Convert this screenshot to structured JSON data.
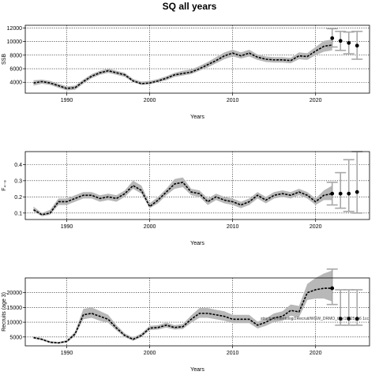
{
  "chart_data": {
    "title": "SQ all years",
    "panels": [
      {
        "type": "line",
        "ylabel": "SSB",
        "xlabel": "Years",
        "xlim": [
          1985,
          2026.5
        ],
        "ylim": [
          2400,
          12400
        ],
        "xticks": [
          1990,
          2000,
          2010,
          2020
        ],
        "yticks": [
          4000,
          6000,
          8000,
          10000,
          12000
        ],
        "grid": true,
        "series": [
          {
            "x": [
              1986,
              1987,
              1988,
              1989,
              1990,
              1991,
              1992,
              1993,
              1994,
              1995,
              1996,
              1997,
              1998,
              1999,
              2000,
              2001,
              2002,
              2003,
              2004,
              2005,
              2006,
              2007,
              2008,
              2009,
              2010,
              2011,
              2012,
              2013,
              2014,
              2015,
              2016,
              2017,
              2018,
              2019,
              2020,
              2021,
              2022
            ],
            "values": [
              3900,
              4100,
              3900,
              3500,
              3100,
              3200,
              4100,
              4900,
              5400,
              5700,
              5400,
              5100,
              4200,
              3800,
              3900,
              4200,
              4600,
              5100,
              5300,
              5500,
              6000,
              6600,
              7200,
              7900,
              8300,
              7900,
              8300,
              7700,
              7400,
              7300,
              7300,
              7200,
              7900,
              7800,
              8600,
              9300,
              9500
            ],
            "lower": [
              3500,
              3800,
              3600,
              3200,
              2800,
              2900,
              3800,
              4600,
              5100,
              5400,
              5100,
              4800,
              4000,
              3600,
              3700,
              4000,
              4300,
              4800,
              5000,
              5200,
              5700,
              6200,
              6800,
              7400,
              7800,
              7500,
              7800,
              7300,
              7000,
              6900,
              6900,
              6800,
              7400,
              7300,
              8000,
              8500,
              8700
            ],
            "upper": [
              4300,
              4400,
              4200,
              3800,
              3400,
              3500,
              4400,
              5200,
              5700,
              6000,
              5700,
              5400,
              4500,
              4100,
              4200,
              4500,
              4900,
              5400,
              5700,
              5900,
              6400,
              7000,
              7700,
              8400,
              8800,
              8400,
              8800,
              8100,
              7800,
              7700,
              7700,
              7600,
              8400,
              8300,
              9200,
              10100,
              10300
            ]
          }
        ],
        "projection": {
          "x": [
            2022,
            2023,
            2024,
            2025
          ],
          "values": [
            10500,
            10100,
            9800,
            9400
          ],
          "lower": [
            9200,
            8700,
            8200,
            7400
          ],
          "upper": [
            11900,
            11500,
            11400,
            11500
          ]
        }
      },
      {
        "type": "line",
        "ylabel": "F₄₋₈",
        "xlabel": "Years",
        "xlim": [
          1985,
          2026.5
        ],
        "ylim": [
          0.06,
          0.48
        ],
        "xticks": [
          1990,
          2000,
          2010,
          2020
        ],
        "yticks": [
          0.1,
          0.2,
          0.3,
          0.4
        ],
        "grid": true,
        "series": [
          {
            "x": [
              1986,
              1987,
              1988,
              1989,
              1990,
              1991,
              1992,
              1993,
              1994,
              1995,
              1996,
              1997,
              1998,
              1999,
              2000,
              2001,
              2002,
              2003,
              2004,
              2005,
              2006,
              2007,
              2008,
              2009,
              2010,
              2011,
              2012,
              2013,
              2014,
              2015,
              2016,
              2017,
              2018,
              2019,
              2020,
              2021,
              2022
            ],
            "values": [
              0.12,
              0.09,
              0.1,
              0.17,
              0.17,
              0.19,
              0.21,
              0.21,
              0.19,
              0.2,
              0.19,
              0.22,
              0.27,
              0.24,
              0.14,
              0.18,
              0.23,
              0.28,
              0.29,
              0.23,
              0.22,
              0.17,
              0.2,
              0.18,
              0.17,
              0.15,
              0.17,
              0.21,
              0.18,
              0.21,
              0.22,
              0.21,
              0.23,
              0.21,
              0.17,
              0.21,
              0.22
            ],
            "lower": [
              0.11,
              0.08,
              0.09,
              0.15,
              0.15,
              0.17,
              0.19,
              0.19,
              0.17,
              0.18,
              0.17,
              0.2,
              0.25,
              0.22,
              0.13,
              0.16,
              0.21,
              0.25,
              0.26,
              0.21,
              0.2,
              0.15,
              0.18,
              0.16,
              0.15,
              0.13,
              0.15,
              0.19,
              0.16,
              0.19,
              0.2,
              0.19,
              0.21,
              0.19,
              0.15,
              0.18,
              0.18
            ],
            "upper": [
              0.14,
              0.1,
              0.12,
              0.19,
              0.19,
              0.21,
              0.23,
              0.23,
              0.21,
              0.22,
              0.21,
              0.24,
              0.3,
              0.27,
              0.16,
              0.2,
              0.25,
              0.31,
              0.32,
              0.25,
              0.24,
              0.19,
              0.22,
              0.2,
              0.19,
              0.17,
              0.19,
              0.23,
              0.2,
              0.23,
              0.24,
              0.23,
              0.25,
              0.23,
              0.19,
              0.24,
              0.27
            ]
          }
        ],
        "projection": {
          "x": [
            2022,
            2023,
            2024,
            2025
          ],
          "values": [
            0.22,
            0.22,
            0.22,
            0.23
          ],
          "lower": [
            0.15,
            0.13,
            0.11,
            0.1
          ],
          "upper": [
            0.29,
            0.35,
            0.43,
            0.48
          ]
        }
      },
      {
        "type": "line",
        "ylabel": "Recruits (age 3)",
        "xlabel": "Years",
        "xlim": [
          1985,
          2026.5
        ],
        "ylim": [
          2000,
          25000
        ],
        "xticks": [
          1990,
          2000,
          2010,
          2020
        ],
        "yticks": [
          5000,
          10000,
          15000,
          20000
        ],
        "grid": true,
        "annotation": "structure/mentolog/2Recruit/WGW_DRMO_t2_r19325_g6 1cc",
        "series": [
          {
            "x": [
              1986,
              1987,
              1988,
              1989,
              1990,
              1991,
              1992,
              1993,
              1994,
              1995,
              1996,
              1997,
              1998,
              1999,
              2000,
              2001,
              2002,
              2003,
              2004,
              2005,
              2006,
              2007,
              2008,
              2009,
              2010,
              2011,
              2012,
              2013,
              2014,
              2015,
              2016,
              2017,
              2018,
              2019,
              2020,
              2021,
              2022
            ],
            "values": [
              4800,
              4200,
              3200,
              3000,
              3500,
              6000,
              12500,
              13000,
              12000,
              11000,
              8000,
              5500,
              4200,
              5500,
              8000,
              8200,
              9000,
              8200,
              8500,
              11000,
              13000,
              13000,
              12500,
              12000,
              11000,
              11000,
              11000,
              9000,
              10000,
              11500,
              12000,
              14000,
              13500,
              20000,
              21000,
              21500,
              21500
            ],
            "lower": [
              4400,
              3900,
              2900,
              2700,
              3100,
              5300,
              11000,
              11500,
              10500,
              9800,
              7200,
              4900,
              3700,
              4900,
              7300,
              7500,
              8200,
              7500,
              7700,
              9800,
              11500,
              11500,
              11000,
              10500,
              9700,
              9700,
              9700,
              7900,
              8800,
              10100,
              10500,
              12200,
              11700,
              17500,
              18000,
              18000,
              17000
            ],
            "upper": [
              5300,
              4600,
              3600,
              3300,
              3900,
              6800,
              14500,
              15000,
              13800,
              12500,
              9000,
              6200,
              4800,
              6200,
              8800,
              9000,
              9900,
              9000,
              9400,
              12300,
              14800,
              14800,
              14200,
              13700,
              12500,
              12500,
              12500,
              10200,
              11300,
              13000,
              13700,
              16000,
              15500,
              23000,
              25000,
              26500,
              27500
            ]
          }
        ],
        "projection": {
          "x": [
            2022,
            2023,
            2024,
            2025
          ],
          "values": [
            21500,
            11200,
            11200,
            11200
          ],
          "lower": [
            16000,
            9000,
            9000,
            9000
          ],
          "upper": [
            28000,
            21000,
            21000,
            21000
          ]
        }
      }
    ]
  }
}
